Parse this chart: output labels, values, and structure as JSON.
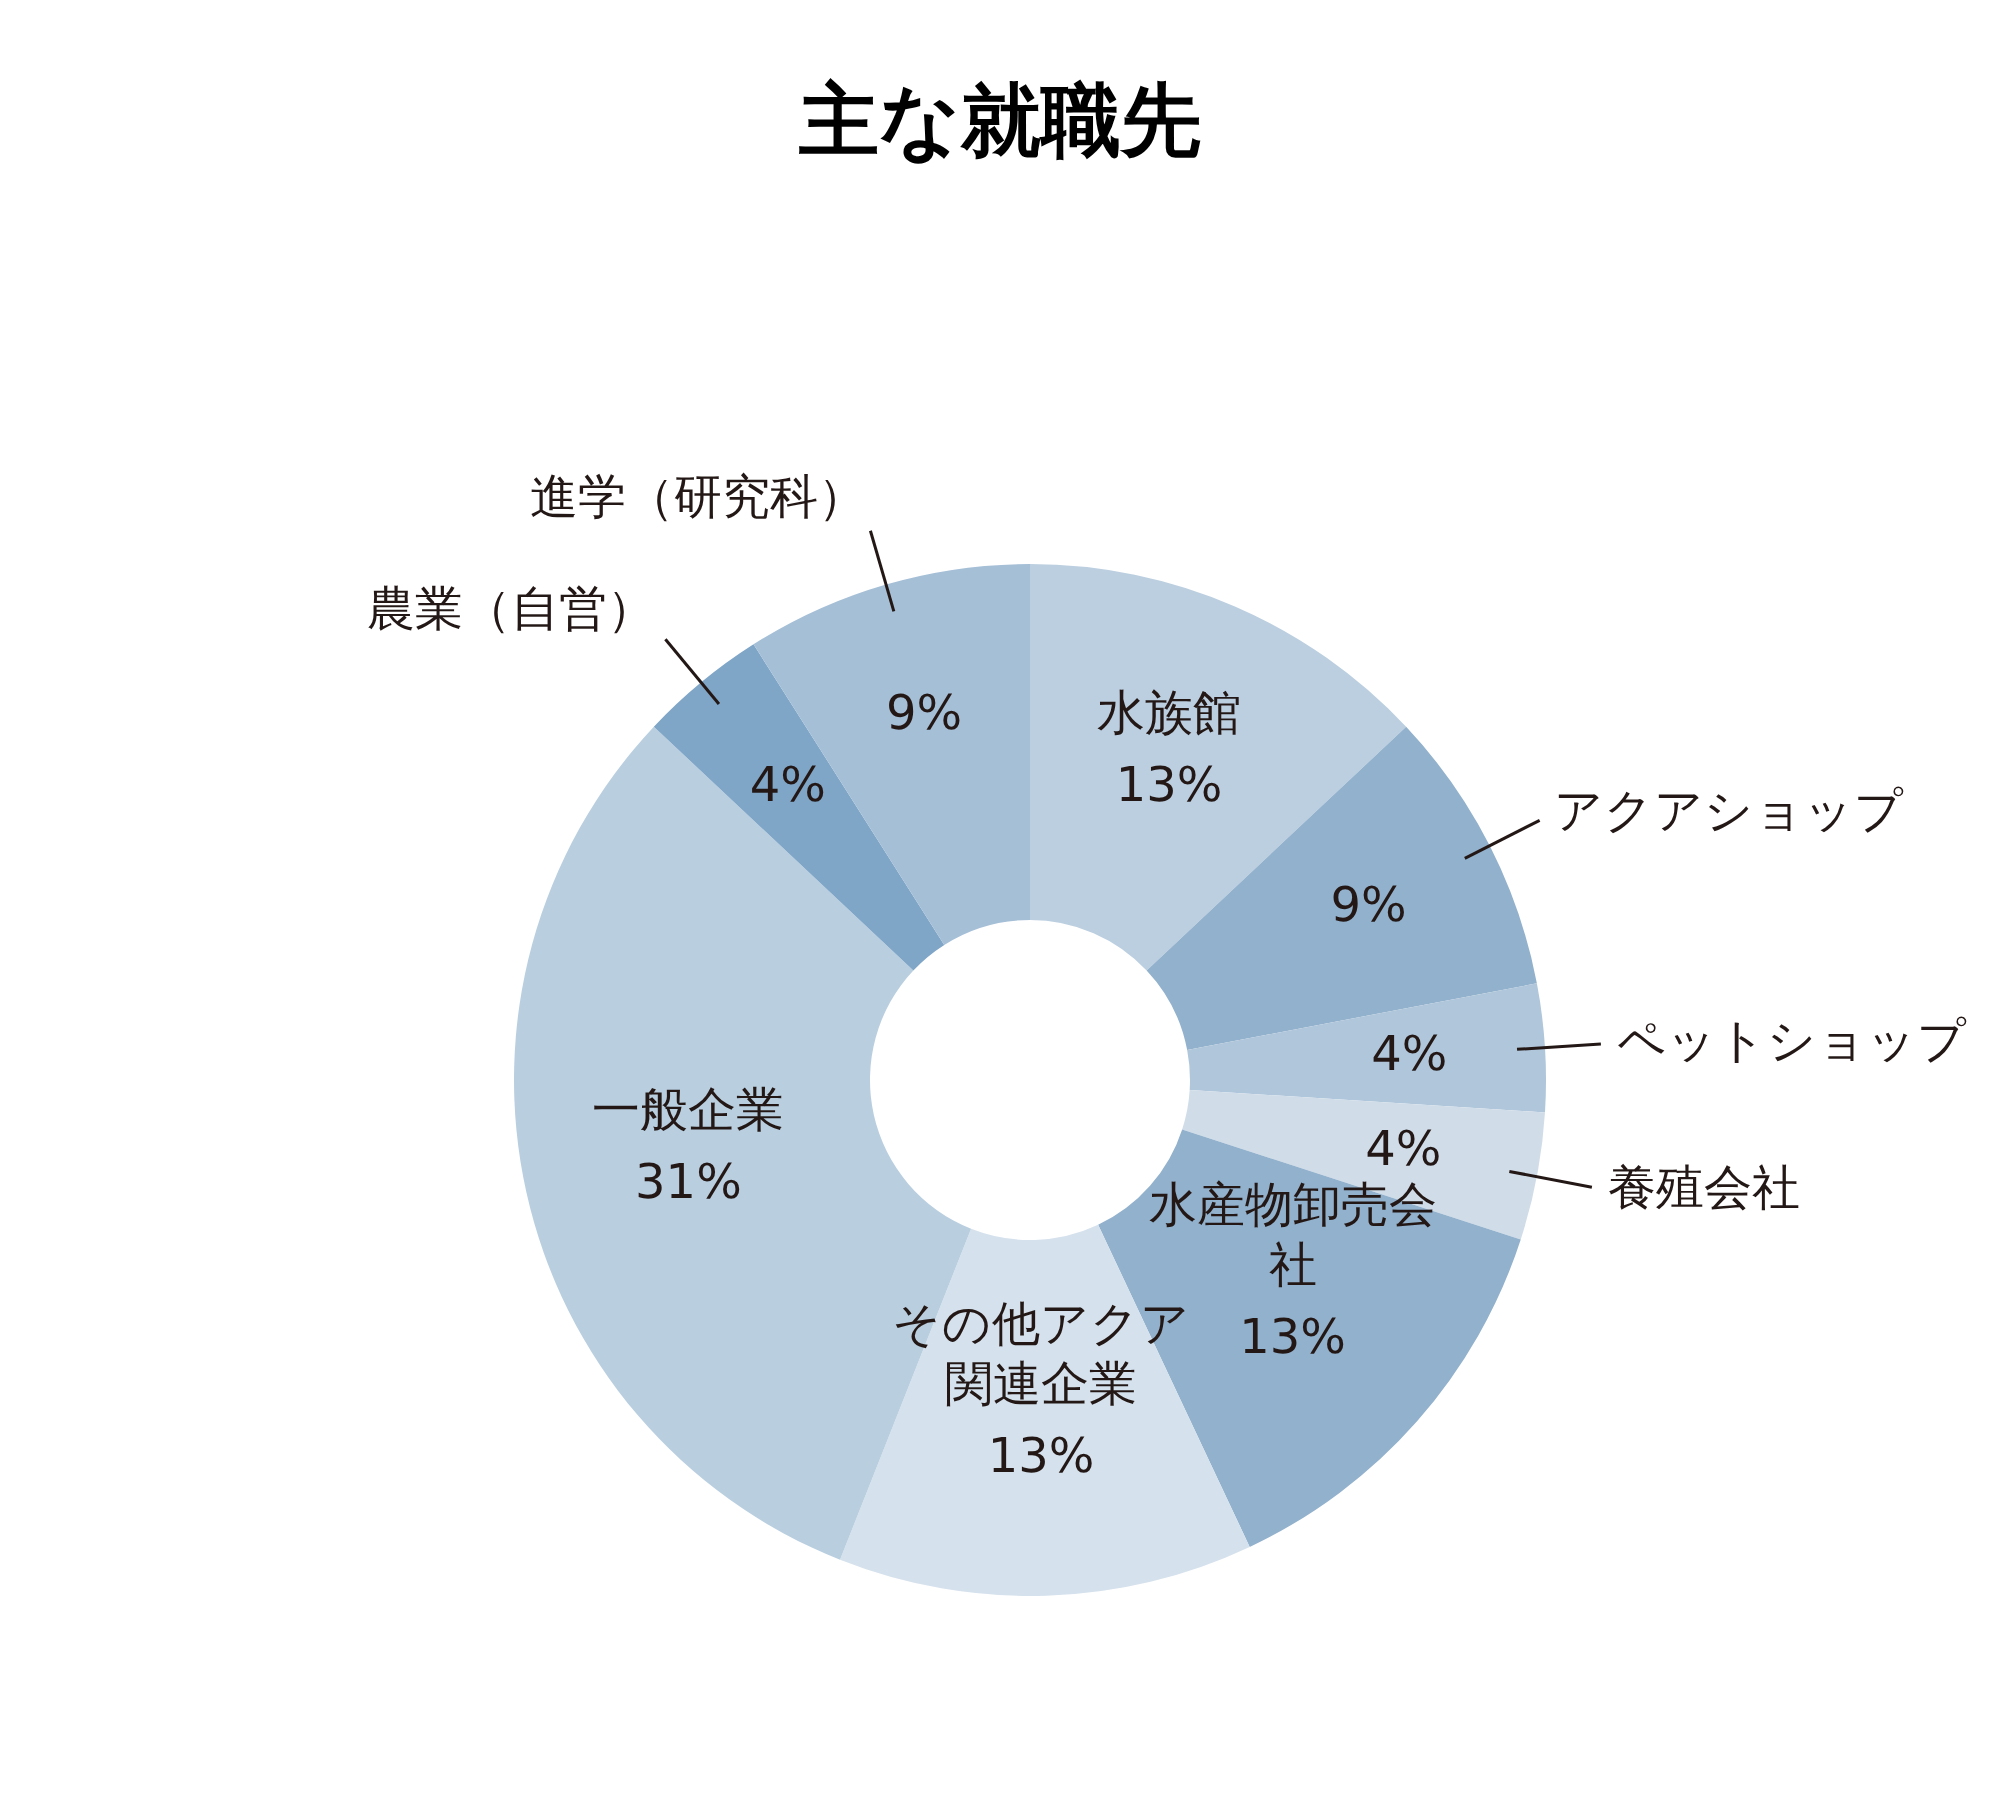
{
  "chart_data": {
    "type": "donut",
    "title": "主な就職先",
    "categories": [
      "水族館",
      "アクアショップ",
      "ペットショップ",
      "養殖会社",
      "水産物卸売会社",
      "その他アクア関連企業",
      "一般企業",
      "農業（自営）",
      "進学（研究科）"
    ],
    "values": [
      13,
      9,
      4,
      4,
      13,
      13,
      31,
      4,
      9
    ],
    "value_labels": [
      "13%",
      "9%",
      "4%",
      "4%",
      "13%",
      "13%",
      "31%",
      "4%",
      "9%"
    ],
    "colors": [
      "#bccfe0",
      "#92b1cc",
      "#afc6db",
      "#d0dde9",
      "#92b1cc",
      "#d5e1ec",
      "#b9cfe0",
      "#7fa5c7",
      "#a5bfd7"
    ]
  }
}
